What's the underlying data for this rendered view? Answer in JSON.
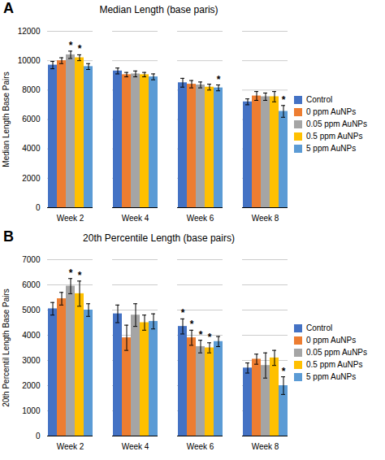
{
  "chart_data": [
    {
      "type": "bar",
      "title": "Median Length (base paris)",
      "ylabel": "Median Length Base Pairs",
      "categories": [
        "Week 2",
        "Week 4",
        "Week 6",
        "Week 8"
      ],
      "series": [
        {
          "name": "Control",
          "color": "#4472c4",
          "values": [
            9700,
            9300,
            8500,
            7200
          ],
          "errors": [
            250,
            200,
            300,
            200
          ]
        },
        {
          "name": "0 ppm AuNPs",
          "color": "#ed7d31",
          "values": [
            10000,
            9050,
            8400,
            7600
          ],
          "errors": [
            200,
            150,
            250,
            300
          ]
        },
        {
          "name": "0.05 ppm AuNPs",
          "color": "#a5a5a5",
          "values": [
            10400,
            9100,
            8350,
            7550
          ],
          "errors": [
            250,
            200,
            200,
            250
          ]
        },
        {
          "name": "0.5 ppm AuNPs",
          "color": "#ffc000",
          "values": [
            10200,
            9050,
            8200,
            7550
          ],
          "errors": [
            200,
            150,
            200,
            350
          ]
        },
        {
          "name": "5 ppm AuNPs",
          "color": "#5b9bd5",
          "values": [
            9600,
            8900,
            8150,
            6550
          ],
          "errors": [
            200,
            200,
            200,
            400
          ]
        }
      ],
      "ylim": [
        0,
        12000
      ],
      "yticks": [
        0,
        2000,
        4000,
        6000,
        8000,
        10000,
        12000
      ],
      "grid": true,
      "legend": "right",
      "annotations": [
        {
          "text": "A"
        },
        {
          "text": "*",
          "category": "Week 2",
          "series": "0.05 ppm AuNPs"
        },
        {
          "text": "*",
          "category": "Week 2",
          "series": "0.5 ppm AuNPs"
        },
        {
          "text": "*",
          "category": "Week 6",
          "series": "5 ppm AuNPs"
        },
        {
          "text": "*",
          "category": "Week 8",
          "series": "5 ppm AuNPs"
        }
      ]
    },
    {
      "type": "bar",
      "title": "20th Percentile Length (base pairs)",
      "ylabel": "20th Percentil Length Base Pairs",
      "categories": [
        "Week 2",
        "Week 4",
        "Week 6",
        "Week 8"
      ],
      "series": [
        {
          "name": "Control",
          "color": "#4472c4",
          "values": [
            5050,
            4850,
            4350,
            2700
          ],
          "errors": [
            250,
            350,
            300,
            200
          ]
        },
        {
          "name": "0 ppm AuNPs",
          "color": "#ed7d31",
          "values": [
            5450,
            3900,
            3900,
            3050
          ],
          "errors": [
            250,
            500,
            300,
            200
          ]
        },
        {
          "name": "0.05 ppm AuNPs",
          "color": "#a5a5a5",
          "values": [
            5950,
            4800,
            3550,
            2800
          ],
          "errors": [
            300,
            450,
            250,
            500
          ]
        },
        {
          "name": "0.5 ppm AuNPs",
          "color": "#ffc000",
          "values": [
            5650,
            4500,
            3500,
            3100
          ],
          "errors": [
            500,
            300,
            200,
            300
          ]
        },
        {
          "name": "5 ppm AuNPs",
          "color": "#5b9bd5",
          "values": [
            5000,
            4550,
            3750,
            2000
          ],
          "errors": [
            250,
            300,
            200,
            350
          ]
        }
      ],
      "ylim": [
        0,
        7000
      ],
      "yticks": [
        0,
        1000,
        2000,
        3000,
        4000,
        5000,
        6000,
        7000
      ],
      "grid": true,
      "legend": "right",
      "annotations": [
        {
          "text": "B"
        },
        {
          "text": "*",
          "category": "Week 2",
          "series": "0.05 ppm AuNPs"
        },
        {
          "text": "*",
          "category": "Week 2",
          "series": "0.5 ppm AuNPs"
        },
        {
          "text": "*",
          "category": "Week 6",
          "series": "Control"
        },
        {
          "text": "*",
          "category": "Week 6",
          "series": "0 ppm AuNPs"
        },
        {
          "text": "*",
          "category": "Week 6",
          "series": "0.05 ppm AuNPs"
        },
        {
          "text": "*",
          "category": "Week 6",
          "series": "0.5 ppm AuNPs"
        },
        {
          "text": "*",
          "category": "Week 8",
          "series": "5 ppm AuNPs"
        }
      ]
    }
  ]
}
